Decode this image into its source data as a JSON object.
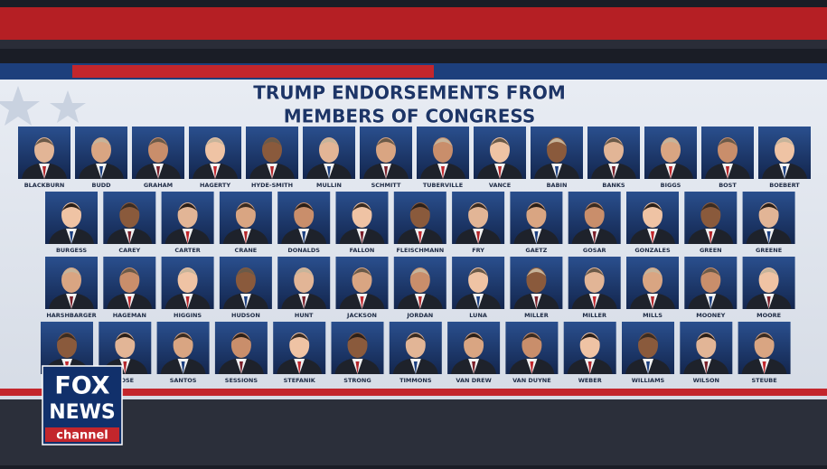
{
  "board": {
    "title_lines": [
      "TRUMP ENDORSEMENTS FROM",
      "MEMBERS OF CONGRESS"
    ],
    "rows": [
      [
        "BLACKBURN",
        "BUDD",
        "GRAHAM",
        "HAGERTY",
        "HYDE-SMITH",
        "MULLIN",
        "SCHMITT",
        "TUBERVILLE",
        "VANCE",
        "BABIN",
        "BANKS",
        "BIGGS",
        "BOST",
        "BOEBERT"
      ],
      [
        "BURGESS",
        "CAREY",
        "CARTER",
        "CRANE",
        "DONALDS",
        "FALLON",
        "FLEISCHMANN",
        "FRY",
        "GAETZ",
        "GOSAR",
        "GONZALES",
        "GREEN",
        "GREENE"
      ],
      [
        "HARSHBARGER",
        "HAGEMAN",
        "HIGGINS",
        "HUDSON",
        "HUNT",
        "JACKSON",
        "JORDAN",
        "LUNA",
        "MILLER",
        "MILLER",
        "MILLS",
        "MOONEY",
        "MOORE"
      ],
      [
        null,
        "ROSE",
        "SANTOS",
        "SESSIONS",
        "STEFANIK",
        "STRONG",
        "TIMMONS",
        "VAN DREW",
        "VAN DUYNE",
        "WEBER",
        "WILLIAMS",
        "WILSON",
        "STEUBE"
      ]
    ]
  },
  "logo": {
    "line1": "FOX",
    "line2": "NEWS",
    "line3": "channel"
  }
}
